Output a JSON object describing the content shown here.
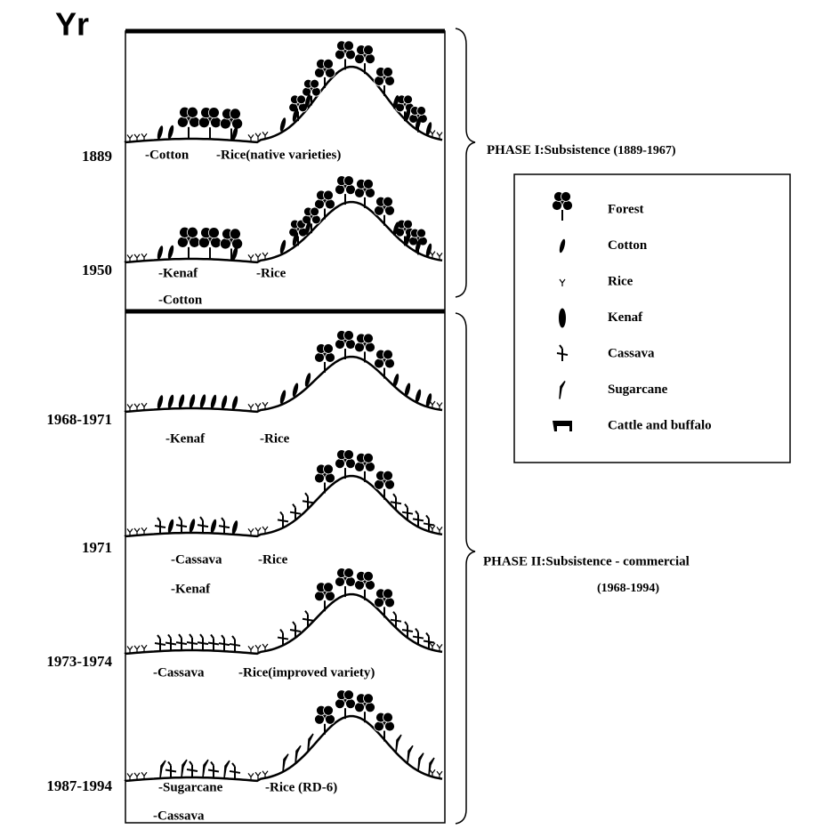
{
  "axis_title": "Yr",
  "panels": [
    {
      "year": "1889",
      "labels": [
        "-Cotton",
        "-Rice(native varieties)"
      ]
    },
    {
      "year": "1950",
      "labels": [
        "-Kenaf",
        "-Rice",
        "-Cotton"
      ]
    },
    {
      "year": "1968-1971",
      "labels": [
        "-Kenaf",
        "-Rice"
      ]
    },
    {
      "year": "1971",
      "labels": [
        "-Cassava",
        "-Rice",
        "-Kenaf"
      ]
    },
    {
      "year": "1973-1974",
      "labels": [
        "-Cassava",
        "-Rice(improved variety)"
      ]
    },
    {
      "year": "1987-1994",
      "labels": [
        "-Sugarcane",
        "-Rice (RD-6)",
        "-Cassava"
      ]
    }
  ],
  "phases": [
    {
      "label": "PHASE I:Subsistence",
      "range": "(1889-1967)"
    },
    {
      "label": "PHASE II:Subsistence - commercial",
      "range": "(1968-1994)"
    }
  ],
  "legend": [
    "Forest",
    "Cotton",
    "Rice",
    "Kenaf",
    "Cassava",
    "Sugarcane",
    "Cattle and buffalo"
  ]
}
